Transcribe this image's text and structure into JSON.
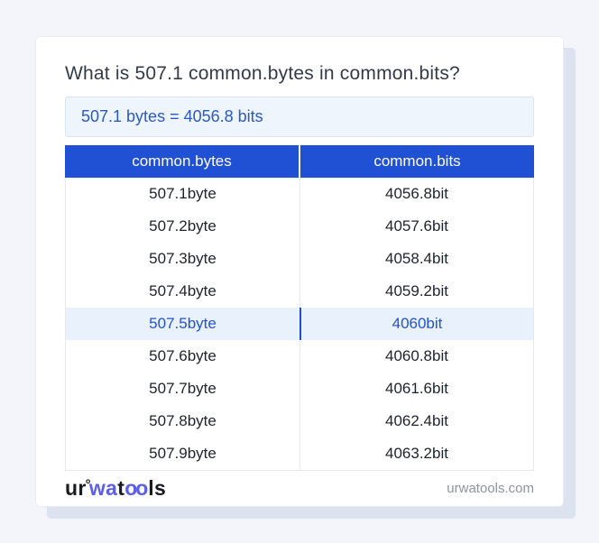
{
  "page": {
    "title": "What is 507.1 common.bytes in common.bits?"
  },
  "answer": {
    "text": "507.1 bytes = 4056.8 bits"
  },
  "table": {
    "headers": [
      "common.bytes",
      "common.bits"
    ],
    "rows": [
      {
        "bytes": "507.1byte",
        "bits": "4056.8bit",
        "highlight": false
      },
      {
        "bytes": "507.2byte",
        "bits": "4057.6bit",
        "highlight": false
      },
      {
        "bytes": "507.3byte",
        "bits": "4058.4bit",
        "highlight": false
      },
      {
        "bytes": "507.4byte",
        "bits": "4059.2bit",
        "highlight": false
      },
      {
        "bytes": "507.5byte",
        "bits": "4060bit",
        "highlight": true
      },
      {
        "bytes": "507.6byte",
        "bits": "4060.8bit",
        "highlight": false
      },
      {
        "bytes": "507.7byte",
        "bits": "4061.6bit",
        "highlight": false
      },
      {
        "bytes": "507.8byte",
        "bits": "4062.4bit",
        "highlight": false
      },
      {
        "bytes": "507.9byte",
        "bits": "4063.2bit",
        "highlight": false
      }
    ]
  },
  "footer": {
    "logo": {
      "ur": "ur",
      "ring": "°",
      "wa": "wa",
      "t": "t",
      "oo": "oo",
      "ls": "ls"
    },
    "site": "urwatools.com"
  },
  "colors": {
    "header_bg": "#2051d4",
    "answer_text": "#2a58c8",
    "answer_box_bg": "#eef5fd",
    "highlight_row_bg": "#e9f1fc",
    "highlight_row_text": "#2253cb",
    "highlight_divider": "#1e50d2",
    "logo_blue": "#5a5fee",
    "page_background": "#f3f5fa"
  }
}
